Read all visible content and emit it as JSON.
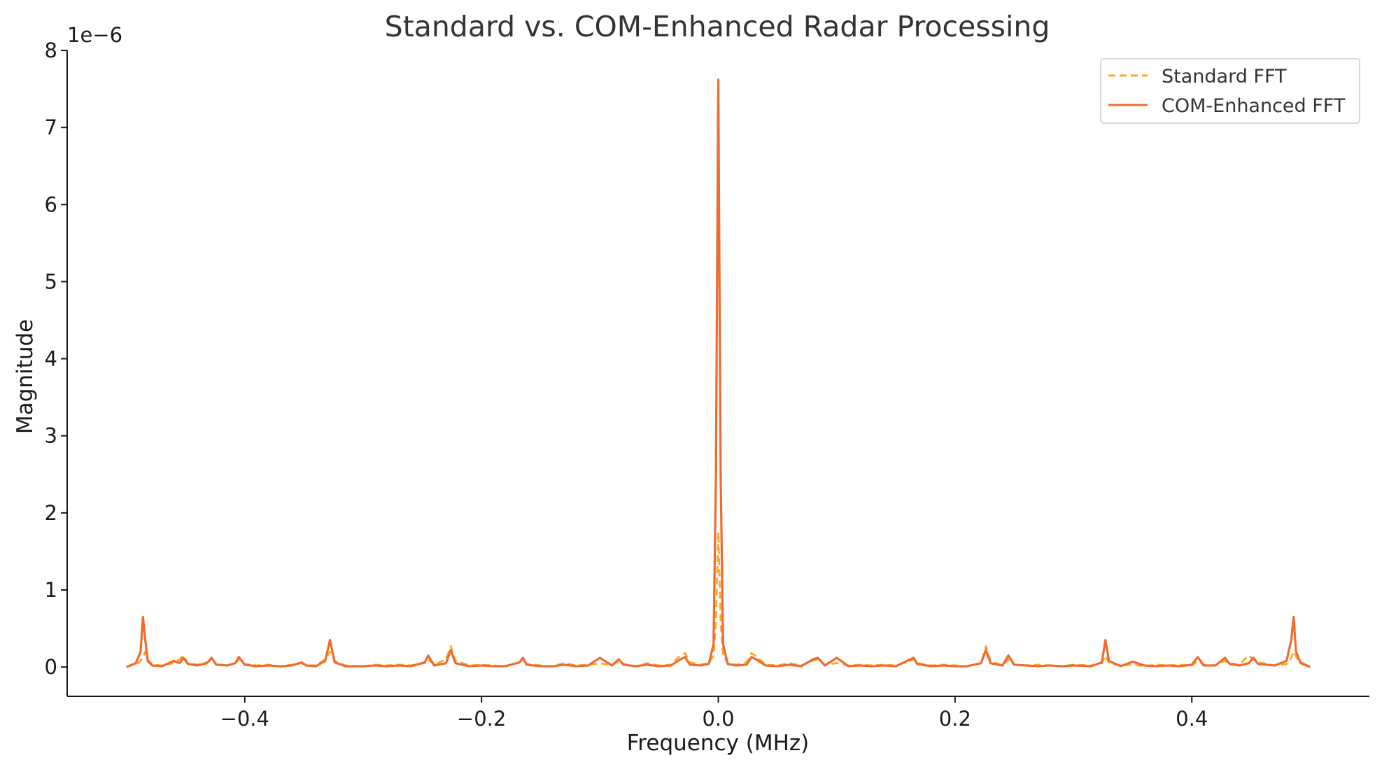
{
  "chart_data": {
    "type": "line",
    "title": "Standard vs. COM-Enhanced Radar Processing",
    "xlabel": "Frequency (MHz)",
    "ylabel": "Magnitude",
    "y_offset_text": "1e−6",
    "xlim": [
      -0.55,
      0.55
    ],
    "ylim": [
      -0.38,
      8.0
    ],
    "x_ticks": [
      -0.4,
      -0.2,
      0.0,
      0.2,
      0.4
    ],
    "x_tick_labels": [
      "−0.4",
      "−0.2",
      "0.0",
      "0.2",
      "0.4"
    ],
    "y_ticks": [
      0,
      1,
      2,
      3,
      4,
      5,
      6,
      7,
      8
    ],
    "y_tick_labels": [
      "0",
      "1",
      "2",
      "3",
      "4",
      "5",
      "6",
      "7",
      "8"
    ],
    "grid": false,
    "legend_position": "top-right",
    "series": [
      {
        "name": "Standard FFT",
        "color": "#FFA726",
        "style": "dashed",
        "x": [
          -0.5,
          -0.49,
          -0.486,
          -0.484,
          -0.482,
          -0.478,
          -0.47,
          -0.46,
          -0.455,
          -0.452,
          -0.448,
          -0.44,
          -0.432,
          -0.428,
          -0.424,
          -0.415,
          -0.408,
          -0.405,
          -0.4,
          -0.39,
          -0.38,
          -0.37,
          -0.36,
          -0.352,
          -0.348,
          -0.34,
          -0.332,
          -0.328,
          -0.324,
          -0.315,
          -0.3,
          -0.29,
          -0.28,
          -0.27,
          -0.26,
          -0.248,
          -0.245,
          -0.24,
          -0.23,
          -0.226,
          -0.222,
          -0.21,
          -0.2,
          -0.19,
          -0.18,
          -0.168,
          -0.165,
          -0.162,
          -0.15,
          -0.14,
          -0.13,
          -0.12,
          -0.11,
          -0.1,
          -0.09,
          -0.084,
          -0.08,
          -0.07,
          -0.06,
          -0.05,
          -0.04,
          -0.032,
          -0.028,
          -0.024,
          -0.015,
          -0.008,
          -0.004,
          -0.002,
          0.0,
          0.002,
          0.004,
          0.008,
          0.015,
          0.024,
          0.028,
          0.032,
          0.04,
          0.05,
          0.06,
          0.07,
          0.08,
          0.084,
          0.09,
          0.1,
          0.11,
          0.12,
          0.13,
          0.14,
          0.15,
          0.162,
          0.165,
          0.168,
          0.18,
          0.19,
          0.2,
          0.21,
          0.222,
          0.226,
          0.23,
          0.24,
          0.245,
          0.25,
          0.26,
          0.27,
          0.28,
          0.29,
          0.3,
          0.315,
          0.324,
          0.327,
          0.33,
          0.34,
          0.35,
          0.36,
          0.37,
          0.38,
          0.39,
          0.4,
          0.405,
          0.41,
          0.42,
          0.428,
          0.432,
          0.44,
          0.448,
          0.452,
          0.456,
          0.47,
          0.48,
          0.484,
          0.486,
          0.49,
          0.5
        ],
        "y": [
          0.0,
          0.05,
          0.12,
          0.2,
          0.1,
          0.03,
          0.02,
          0.05,
          0.1,
          0.15,
          0.05,
          0.03,
          0.06,
          0.09,
          0.03,
          0.02,
          0.05,
          0.1,
          0.04,
          0.02,
          0.03,
          0.01,
          0.03,
          0.05,
          0.02,
          0.02,
          0.1,
          0.2,
          0.08,
          0.02,
          0.01,
          0.03,
          0.02,
          0.03,
          0.02,
          0.05,
          0.1,
          0.03,
          0.1,
          0.27,
          0.08,
          0.02,
          0.03,
          0.02,
          0.01,
          0.06,
          0.1,
          0.04,
          0.02,
          0.01,
          0.05,
          0.02,
          0.03,
          0.05,
          0.02,
          0.08,
          0.04,
          0.01,
          0.05,
          0.02,
          0.03,
          0.15,
          0.18,
          0.06,
          0.03,
          0.05,
          0.15,
          0.6,
          1.75,
          0.6,
          0.15,
          0.05,
          0.03,
          0.06,
          0.18,
          0.14,
          0.03,
          0.02,
          0.05,
          0.02,
          0.08,
          0.1,
          0.03,
          0.05,
          0.02,
          0.03,
          0.02,
          0.03,
          0.02,
          0.08,
          0.1,
          0.05,
          0.02,
          0.03,
          0.02,
          0.01,
          0.05,
          0.27,
          0.08,
          0.02,
          0.1,
          0.03,
          0.02,
          0.03,
          0.02,
          0.01,
          0.03,
          0.02,
          0.05,
          0.15,
          0.05,
          0.02,
          0.03,
          0.01,
          0.03,
          0.02,
          0.03,
          0.02,
          0.08,
          0.03,
          0.02,
          0.08,
          0.05,
          0.03,
          0.15,
          0.1,
          0.06,
          0.02,
          0.04,
          0.12,
          0.2,
          0.08,
          0.0
        ]
      },
      {
        "name": "COM-Enhanced FFT",
        "color": "#EF6C2E",
        "style": "solid",
        "x": [
          -0.5,
          -0.492,
          -0.488,
          -0.486,
          -0.484,
          -0.482,
          -0.478,
          -0.47,
          -0.46,
          -0.455,
          -0.452,
          -0.448,
          -0.44,
          -0.432,
          -0.428,
          -0.424,
          -0.415,
          -0.408,
          -0.405,
          -0.4,
          -0.39,
          -0.38,
          -0.37,
          -0.36,
          -0.352,
          -0.348,
          -0.34,
          -0.332,
          -0.328,
          -0.324,
          -0.315,
          -0.3,
          -0.29,
          -0.28,
          -0.27,
          -0.26,
          -0.248,
          -0.245,
          -0.24,
          -0.23,
          -0.226,
          -0.222,
          -0.21,
          -0.2,
          -0.19,
          -0.18,
          -0.168,
          -0.165,
          -0.162,
          -0.15,
          -0.14,
          -0.13,
          -0.12,
          -0.11,
          -0.1,
          -0.09,
          -0.084,
          -0.08,
          -0.07,
          -0.06,
          -0.05,
          -0.04,
          -0.032,
          -0.028,
          -0.024,
          -0.015,
          -0.008,
          -0.004,
          -0.002,
          0.0,
          0.002,
          0.004,
          0.008,
          0.015,
          0.024,
          0.028,
          0.032,
          0.04,
          0.05,
          0.06,
          0.07,
          0.08,
          0.084,
          0.09,
          0.1,
          0.11,
          0.12,
          0.13,
          0.14,
          0.15,
          0.162,
          0.165,
          0.168,
          0.18,
          0.19,
          0.2,
          0.21,
          0.222,
          0.226,
          0.23,
          0.24,
          0.245,
          0.25,
          0.26,
          0.27,
          0.28,
          0.29,
          0.3,
          0.315,
          0.324,
          0.327,
          0.33,
          0.34,
          0.35,
          0.36,
          0.37,
          0.38,
          0.39,
          0.4,
          0.405,
          0.41,
          0.42,
          0.428,
          0.432,
          0.44,
          0.448,
          0.452,
          0.456,
          0.47,
          0.48,
          0.484,
          0.486,
          0.488,
          0.492,
          0.5
        ],
        "y": [
          0.0,
          0.05,
          0.2,
          0.65,
          0.35,
          0.08,
          0.02,
          0.01,
          0.08,
          0.05,
          0.12,
          0.04,
          0.02,
          0.05,
          0.12,
          0.03,
          0.02,
          0.05,
          0.13,
          0.03,
          0.01,
          0.02,
          0.01,
          0.02,
          0.06,
          0.02,
          0.01,
          0.08,
          0.35,
          0.06,
          0.01,
          0.01,
          0.02,
          0.01,
          0.02,
          0.01,
          0.06,
          0.15,
          0.02,
          0.05,
          0.22,
          0.05,
          0.01,
          0.02,
          0.01,
          0.01,
          0.06,
          0.12,
          0.03,
          0.01,
          0.01,
          0.03,
          0.01,
          0.02,
          0.12,
          0.02,
          0.1,
          0.03,
          0.01,
          0.03,
          0.01,
          0.02,
          0.1,
          0.13,
          0.03,
          0.02,
          0.04,
          0.3,
          2.5,
          7.62,
          2.5,
          0.3,
          0.04,
          0.02,
          0.03,
          0.13,
          0.1,
          0.02,
          0.01,
          0.03,
          0.01,
          0.1,
          0.12,
          0.02,
          0.12,
          0.01,
          0.02,
          0.01,
          0.02,
          0.01,
          0.1,
          0.12,
          0.04,
          0.01,
          0.02,
          0.01,
          0.01,
          0.05,
          0.22,
          0.05,
          0.02,
          0.15,
          0.03,
          0.02,
          0.01,
          0.02,
          0.01,
          0.02,
          0.01,
          0.06,
          0.35,
          0.08,
          0.01,
          0.07,
          0.02,
          0.01,
          0.02,
          0.01,
          0.03,
          0.13,
          0.02,
          0.02,
          0.12,
          0.04,
          0.02,
          0.05,
          0.12,
          0.04,
          0.02,
          0.08,
          0.35,
          0.65,
          0.2,
          0.05,
          0.0
        ]
      }
    ]
  }
}
